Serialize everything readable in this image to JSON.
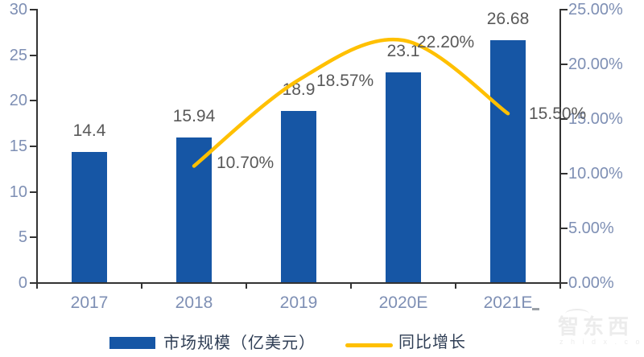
{
  "chart_data": {
    "type": "combo-bar-line",
    "title": "",
    "categories": [
      "2017",
      "2018",
      "2019",
      "2020E",
      "2021E"
    ],
    "series": [
      {
        "name": "市场规模（亿美元）",
        "type": "bar",
        "axis": "left",
        "color": "#1656A5",
        "values": [
          14.4,
          15.94,
          18.9,
          23.1,
          26.68
        ],
        "labels": [
          "14.4",
          "15.94",
          "18.9",
          "23.1",
          "26.68"
        ]
      },
      {
        "name": "同比增长",
        "type": "line",
        "axis": "right",
        "color": "#FFC000",
        "smooth": true,
        "values": [
          null,
          10.7,
          18.57,
          22.2,
          15.5
        ],
        "labels": [
          null,
          "10.70%",
          "18.57%",
          "22.20%",
          "15.50%"
        ],
        "label_offsets": [
          [
            0,
            0
          ],
          [
            28,
            -3
          ],
          [
            22,
            2
          ],
          [
            17,
            3
          ],
          [
            26,
            1
          ]
        ]
      }
    ],
    "left_axis": {
      "min": 0,
      "max": 30,
      "step": 5,
      "tick_labels": [
        "0",
        "5",
        "10",
        "15",
        "20",
        "25",
        "30"
      ]
    },
    "right_axis": {
      "min": 0,
      "max": 25,
      "step": 5,
      "tick_labels": [
        "0.00%",
        "5.00%",
        "10.00%",
        "15.00%",
        "20.00%",
        "25.00%"
      ]
    },
    "legend_position": "bottom",
    "grid": false
  },
  "colors": {
    "background": "#FFFFFF",
    "bar": "#1656A5",
    "line": "#FFC000",
    "axis_line": "#333333",
    "axis_label": "#7E8FB4",
    "data_label": "#595959",
    "legend_text": "#2F3E55",
    "watermark": "#ECECEC"
  },
  "watermark": {
    "logo_text": "智东西",
    "sub_text": "z h i d x . c o m"
  }
}
